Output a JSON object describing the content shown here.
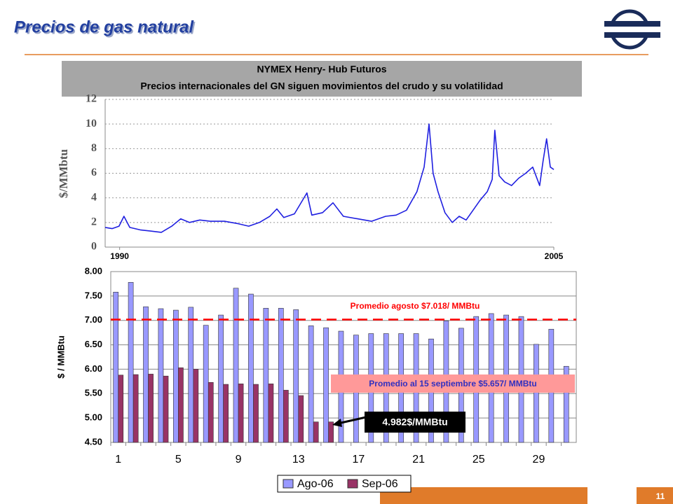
{
  "slide": {
    "title": "Precios de gas natural",
    "page_number": "11"
  },
  "chart_data": [
    {
      "type": "line",
      "title": "NYMEX Henry- Hub Futuros",
      "subtitle": "Precios internacionales del GN siguen movimientos del crudo y su volatilidad",
      "y_label": "$/MMbtu",
      "x": [
        1989.5,
        1989.74,
        1989.98,
        1990.15,
        1990.35,
        1990.71,
        1991.07,
        1991.44,
        1991.8,
        1992.11,
        1992.41,
        1992.77,
        1993.13,
        1993.62,
        1994.1,
        1994.46,
        1994.83,
        1995.19,
        1995.43,
        1995.67,
        1996.04,
        1996.47,
        1996.64,
        1997.01,
        1997.37,
        1997.73,
        1998.22,
        1998.7,
        1999.19,
        1999.55,
        1999.91,
        2000.27,
        2000.52,
        2000.69,
        2000.83,
        2001.0,
        2001.24,
        2001.49,
        2001.73,
        2001.97,
        2002.21,
        2002.45,
        2002.7,
        2002.87,
        2002.96,
        2003.11,
        2003.3,
        2003.54,
        2003.79,
        2004.03,
        2004.27,
        2004.51,
        2004.63,
        2004.75,
        2004.88,
        2005.0
      ],
      "values": [
        1.6,
        1.5,
        1.7,
        2.5,
        1.6,
        1.4,
        1.3,
        1.2,
        1.7,
        2.3,
        2.0,
        2.2,
        2.1,
        2.1,
        1.9,
        1.7,
        2.0,
        2.5,
        3.1,
        2.4,
        2.7,
        4.4,
        2.6,
        2.8,
        3.6,
        2.5,
        2.3,
        2.1,
        2.5,
        2.6,
        3.0,
        4.5,
        6.5,
        10.0,
        6.0,
        4.5,
        2.8,
        2.0,
        2.5,
        2.2,
        3.0,
        3.8,
        4.5,
        5.5,
        9.5,
        5.8,
        5.3,
        5.0,
        5.6,
        6.0,
        6.5,
        5.0,
        7.0,
        8.8,
        6.5,
        6.3
      ],
      "color": "#1f1fe0",
      "xlim": [
        1989.5,
        2005.0
      ],
      "xticks": [
        1990,
        2005
      ],
      "ylim": [
        0,
        12
      ],
      "yticks": [
        0,
        2,
        4,
        6,
        8,
        10,
        12
      ],
      "grid": true
    },
    {
      "type": "bar",
      "y_label": "$ / MMBtu",
      "categories": [
        "1",
        null,
        null,
        null,
        "5",
        null,
        null,
        null,
        "9",
        null,
        null,
        null,
        "13",
        null,
        null,
        null,
        "17",
        null,
        null,
        null,
        "21",
        null,
        null,
        null,
        "25",
        null,
        null,
        null,
        "29",
        null,
        null
      ],
      "series": [
        {
          "name": "Ago-06",
          "color": "#9999ff",
          "values": [
            7.58,
            7.78,
            7.28,
            7.24,
            7.21,
            7.27,
            6.9,
            7.11,
            7.66,
            7.54,
            7.25,
            7.25,
            7.22,
            6.89,
            6.85,
            6.78,
            6.7,
            6.73,
            6.73,
            6.73,
            6.73,
            6.62,
            6.99,
            6.84,
            7.08,
            7.14,
            7.11,
            7.08,
            6.51,
            6.82,
            6.06
          ]
        },
        {
          "name": "Sep-06",
          "color": "#993366",
          "values": [
            5.88,
            5.89,
            5.9,
            5.86,
            6.03,
            6.0,
            5.73,
            5.69,
            5.7,
            5.69,
            5.7,
            5.57,
            5.46,
            4.92,
            4.92,
            null,
            null,
            null,
            null,
            null,
            null,
            null,
            null,
            null,
            null,
            null,
            null,
            null,
            null,
            null,
            null
          ]
        }
      ],
      "ylim": [
        4.5,
        8.0
      ],
      "yticks": [
        {
          "value": 4.5,
          "label": "4.50"
        },
        {
          "value": 5,
          "label": "5.00"
        },
        {
          "value": 5.5,
          "label": "5.50"
        },
        {
          "value": 6,
          "label": "6.00"
        },
        {
          "value": 6.5,
          "label": "6.50"
        },
        {
          "value": 7,
          "label": "7.00"
        },
        {
          "value": 7.5,
          "label": "7.50"
        },
        {
          "value": 8,
          "label": "8.00"
        }
      ],
      "grid": true,
      "legend": "bottom",
      "ref_line": {
        "value": 7.018,
        "label": "Promedio agosto  $7.018/ MMBtu",
        "color": "#ff0000"
      },
      "annotations": [
        "Promedio al 15 septiembre  $5.657/ MMBtu",
        "4.982$/MMBtu"
      ]
    }
  ]
}
